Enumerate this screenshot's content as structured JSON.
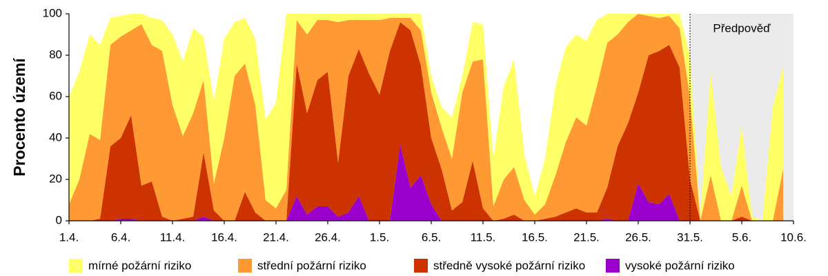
{
  "chart_data": {
    "type": "area",
    "y_label": "Procento území",
    "annotation": "Předpověď",
    "categories": [
      "1.4.",
      null,
      null,
      null,
      null,
      "6.4.",
      null,
      null,
      null,
      null,
      "11.4.",
      null,
      null,
      null,
      null,
      "16.4.",
      null,
      null,
      null,
      null,
      "21.4.",
      null,
      null,
      null,
      null,
      "26.4.",
      null,
      null,
      null,
      null,
      "1.5.",
      null,
      null,
      null,
      null,
      "6.5.",
      null,
      null,
      null,
      null,
      "11.5.",
      null,
      null,
      null,
      null,
      "16.5.",
      null,
      null,
      null,
      null,
      "21.5.",
      null,
      null,
      null,
      null,
      "26.5.",
      null,
      null,
      null,
      null,
      "31.5.",
      null,
      null,
      null,
      null,
      "5.6.",
      null,
      null,
      null,
      null,
      "10.6."
    ],
    "series": [
      {
        "name": "mírné požární riziko",
        "color": "#ffff66",
        "values": [
          52,
          52,
          48,
          46,
          13,
          10,
          8,
          5,
          13,
          15,
          34,
          36,
          41,
          21,
          40,
          48,
          26,
          22,
          32,
          39,
          51,
          85,
          3,
          10,
          3,
          3,
          4,
          3,
          3,
          3,
          3,
          2,
          2,
          2,
          8,
          8,
          10,
          20,
          8,
          19,
          17,
          23,
          45,
          52,
          22,
          9,
          22,
          43,
          46,
          40,
          41,
          32,
          14,
          10,
          4,
          0,
          1,
          2,
          1,
          7,
          20,
          2,
          50,
          26,
          12,
          29,
          2,
          0,
          55,
          49,
          null
        ]
      },
      {
        "name": "střední požární riziko",
        "color": "#ff9933",
        "values": [
          8,
          20,
          42,
          38,
          49,
          49,
          41,
          78,
          66,
          80,
          56,
          40,
          50,
          35,
          13,
          40,
          70,
          62,
          52,
          10,
          6,
          15,
          21,
          38,
          29,
          25,
          68,
          27,
          14,
          26,
          36,
          16,
          2,
          6,
          17,
          22,
          20,
          25,
          53,
          48,
          72,
          7,
          19,
          23,
          10,
          3,
          7,
          20,
          34,
          44,
          42,
          61,
          70,
          54,
          49,
          38,
          19,
          16,
          14,
          19,
          40,
          0,
          22,
          0,
          0,
          15,
          0,
          0,
          0,
          25,
          null
        ]
      },
      {
        "name": "středně vysoké požární riziko",
        "color": "#cc3300",
        "values": [
          0,
          0,
          0,
          1,
          36,
          39,
          50,
          17,
          19,
          2,
          0,
          1,
          2,
          31,
          5,
          0,
          0,
          14,
          4,
          0,
          0,
          0,
          64,
          49,
          61,
          65,
          26,
          66,
          71,
          71,
          61,
          82,
          59,
          76,
          53,
          32,
          25,
          5,
          9,
          29,
          6,
          0,
          1,
          3,
          0,
          0,
          1,
          2,
          4,
          6,
          4,
          4,
          15,
          36,
          47,
          44,
          71,
          74,
          72,
          74,
          20,
          0,
          0,
          0,
          0,
          2,
          0,
          0,
          0,
          0,
          null
        ]
      },
      {
        "name": "vysoké požární riziko",
        "color": "#9900cc",
        "values": [
          0,
          0,
          0,
          0,
          0,
          1,
          1,
          0,
          0,
          0,
          0,
          0,
          0,
          2,
          0,
          0,
          0,
          0,
          0,
          0,
          0,
          0,
          12,
          3,
          7,
          7,
          2,
          4,
          12,
          0,
          0,
          0,
          37,
          16,
          22,
          8,
          0,
          0,
          0,
          0,
          0,
          0,
          0,
          0,
          0,
          0,
          0,
          0,
          0,
          0,
          0,
          0,
          1,
          0,
          0,
          18,
          9,
          8,
          13,
          0,
          0,
          0,
          0,
          0,
          0,
          0,
          0,
          0,
          0,
          0,
          null
        ]
      }
    ],
    "ylim": [
      0,
      100
    ],
    "yticks": [
      0,
      20,
      40,
      60,
      80,
      100
    ],
    "grid": false,
    "legend": "bottom"
  }
}
